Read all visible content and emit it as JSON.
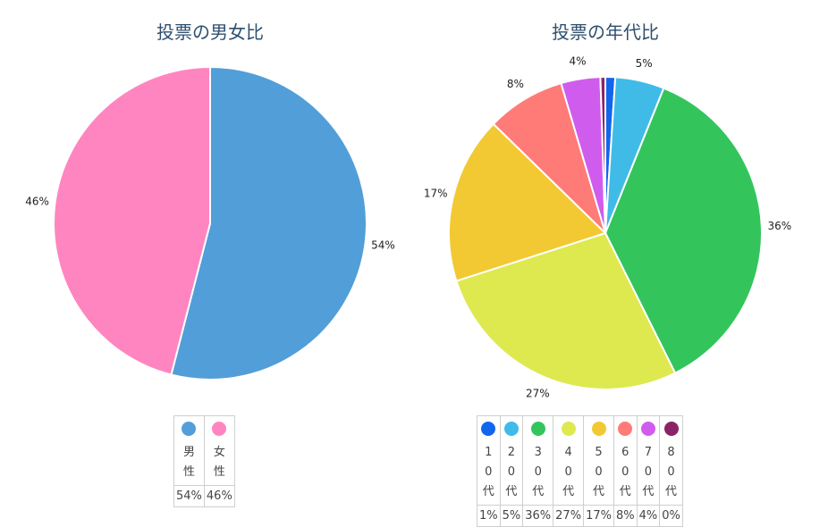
{
  "chart_data": [
    {
      "type": "pie",
      "title": "投票の男女比",
      "labels": [
        "男性",
        "女性"
      ],
      "values": [
        54,
        46
      ],
      "value_labels": [
        "54%",
        "46%"
      ],
      "colors": [
        "#529ed8",
        "#ff85c0"
      ],
      "legend": "bottom-table"
    },
    {
      "type": "pie",
      "title": "投票の年代比",
      "labels": [
        "10代",
        "20代",
        "30代",
        "40代",
        "50代",
        "60代",
        "70代",
        "80代"
      ],
      "values": [
        1,
        5,
        36,
        27,
        17,
        8,
        4,
        0.5
      ],
      "legend_values": [
        "1%",
        "5%",
        "36%",
        "27%",
        "17%",
        "8%",
        "4%",
        "0%"
      ],
      "slice_labels": [
        "",
        "5%",
        "36%",
        "27%",
        "17%",
        "8%",
        "4%",
        ""
      ],
      "colors": [
        "#1166ee",
        "#40bbe8",
        "#33c55c",
        "#dde94f",
        "#f2c933",
        "#ff7b78",
        "#d05cee",
        "#8b2466"
      ],
      "legend": "bottom-table"
    }
  ]
}
